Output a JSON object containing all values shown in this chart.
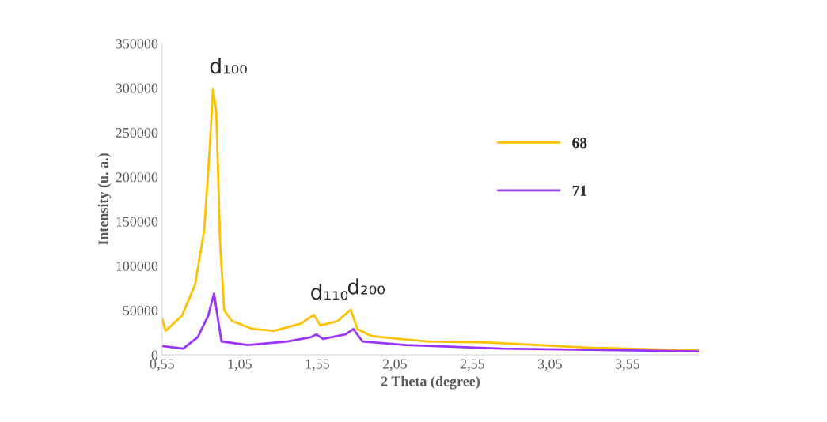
{
  "chart_data": {
    "type": "line",
    "xlabel": "2 Theta (degree)",
    "ylabel": "Intensity (u. a.)",
    "xlim": [
      0.55,
      4.01
    ],
    "ylim": [
      0,
      350000
    ],
    "xticks": [
      {
        "value": 0.55,
        "label": "0,55"
      },
      {
        "value": 1.05,
        "label": "1,05"
      },
      {
        "value": 1.55,
        "label": "1,55"
      },
      {
        "value": 2.05,
        "label": "2,05"
      },
      {
        "value": 2.55,
        "label": "2,55"
      },
      {
        "value": 3.05,
        "label": "3,05"
      },
      {
        "value": 3.55,
        "label": "3,55"
      }
    ],
    "yticks": [
      0,
      50000,
      100000,
      150000,
      200000,
      250000,
      300000,
      350000
    ],
    "grid": false,
    "legend": "right",
    "marker": "none",
    "line_style": "solid",
    "series": [
      {
        "name": "68",
        "color": "#ffc000",
        "x": [
          0.55,
          0.572,
          0.678,
          0.763,
          0.822,
          0.856,
          0.878,
          0.899,
          0.924,
          0.95,
          1.0,
          1.137,
          1.273,
          1.443,
          1.528,
          1.57,
          1.681,
          1.766,
          1.809,
          1.902,
          2.26,
          2.647,
          3.32,
          4.01
        ],
        "values": [
          41000,
          27000,
          44000,
          79000,
          141000,
          230000,
          299000,
          274000,
          126000,
          50000,
          38000,
          29000,
          27000,
          35000,
          45000,
          33000,
          38000,
          51000,
          29000,
          21000,
          15000,
          14000,
          8000,
          5000
        ]
      },
      {
        "name": "71",
        "color": "#9933ff",
        "x": [
          0.55,
          0.686,
          0.78,
          0.847,
          0.885,
          0.912,
          0.933,
          1.103,
          1.358,
          1.511,
          1.545,
          1.587,
          1.732,
          1.783,
          1.842,
          2.123,
          2.74,
          4.01
        ],
        "values": [
          10000,
          7000,
          20000,
          44000,
          69000,
          38000,
          15000,
          11000,
          15000,
          20000,
          23000,
          18000,
          23000,
          29000,
          15000,
          11000,
          7000,
          4000
        ]
      }
    ],
    "annotations": [
      {
        "text": "d₁₀₀",
        "x": 0.878,
        "y": 299000
      },
      {
        "text": "d₁₁₀",
        "x": 1.528,
        "y": 45000
      },
      {
        "text": "d₂₀₀",
        "x": 1.766,
        "y": 51000
      }
    ]
  }
}
